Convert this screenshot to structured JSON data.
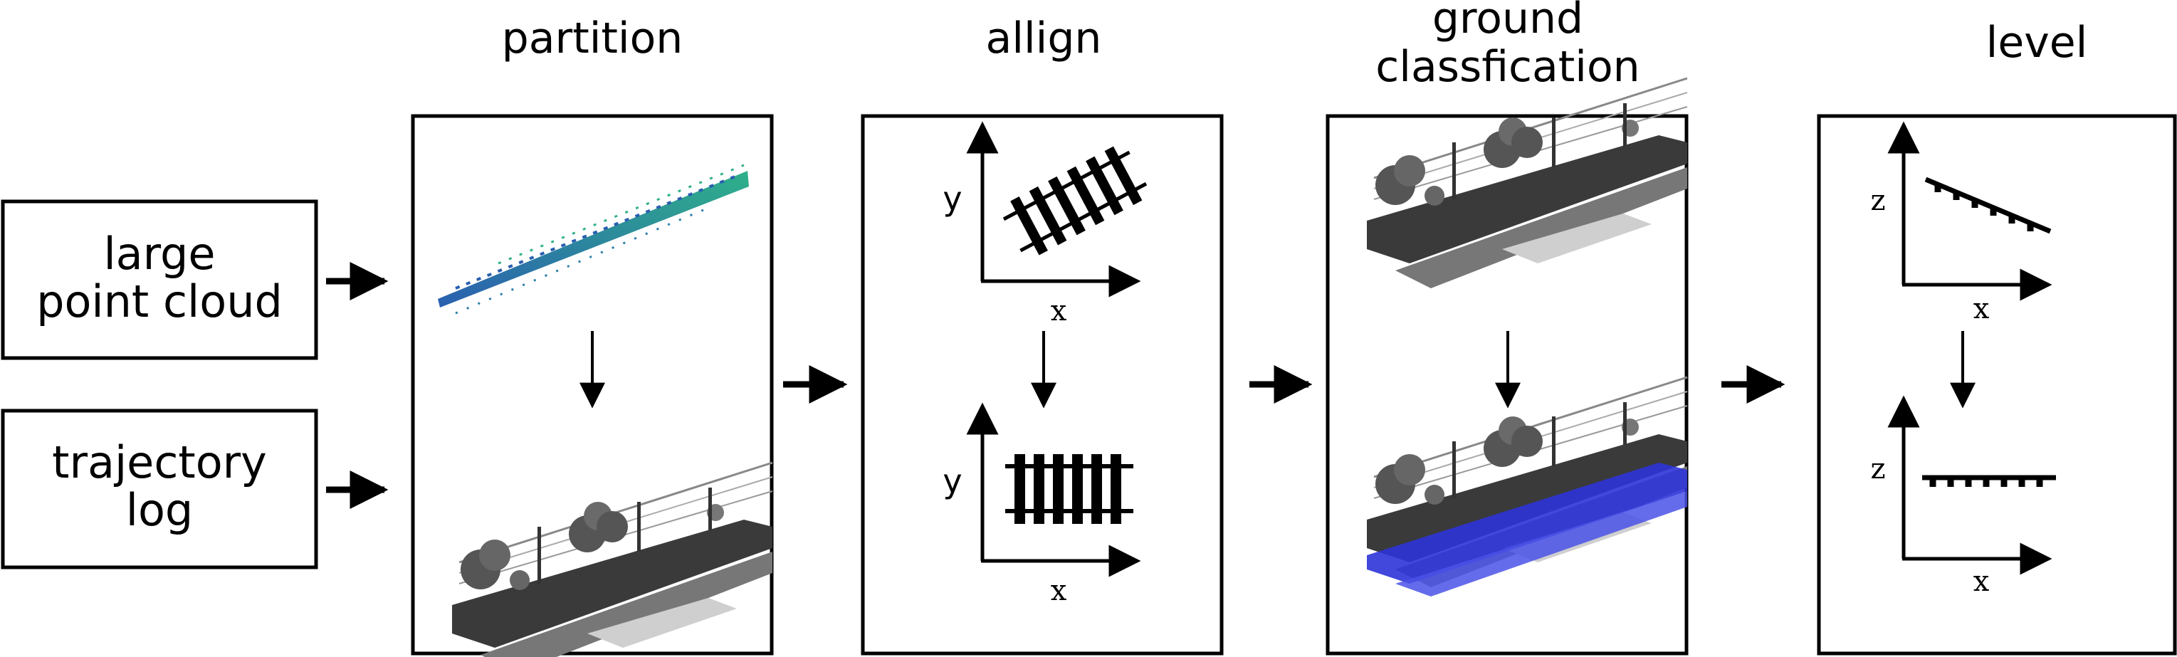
{
  "inputs": [
    {
      "line1": "large",
      "line2": "point cloud"
    },
    {
      "line1": "trajectory",
      "line2": "log"
    }
  ],
  "stages": [
    {
      "title": "partition"
    },
    {
      "title": "allign"
    },
    {
      "title_line1": "ground",
      "title_line2": "classfication"
    },
    {
      "title": "level"
    }
  ],
  "axes": {
    "x": "x",
    "y": "y",
    "z": "z"
  },
  "colors": {
    "stroke": "#000000",
    "strip_blue": "#2a5fb0",
    "strip_green": "#2fb08a",
    "cloud_gray": "#3a3a3a",
    "ground_blue": "#2d34d8"
  }
}
